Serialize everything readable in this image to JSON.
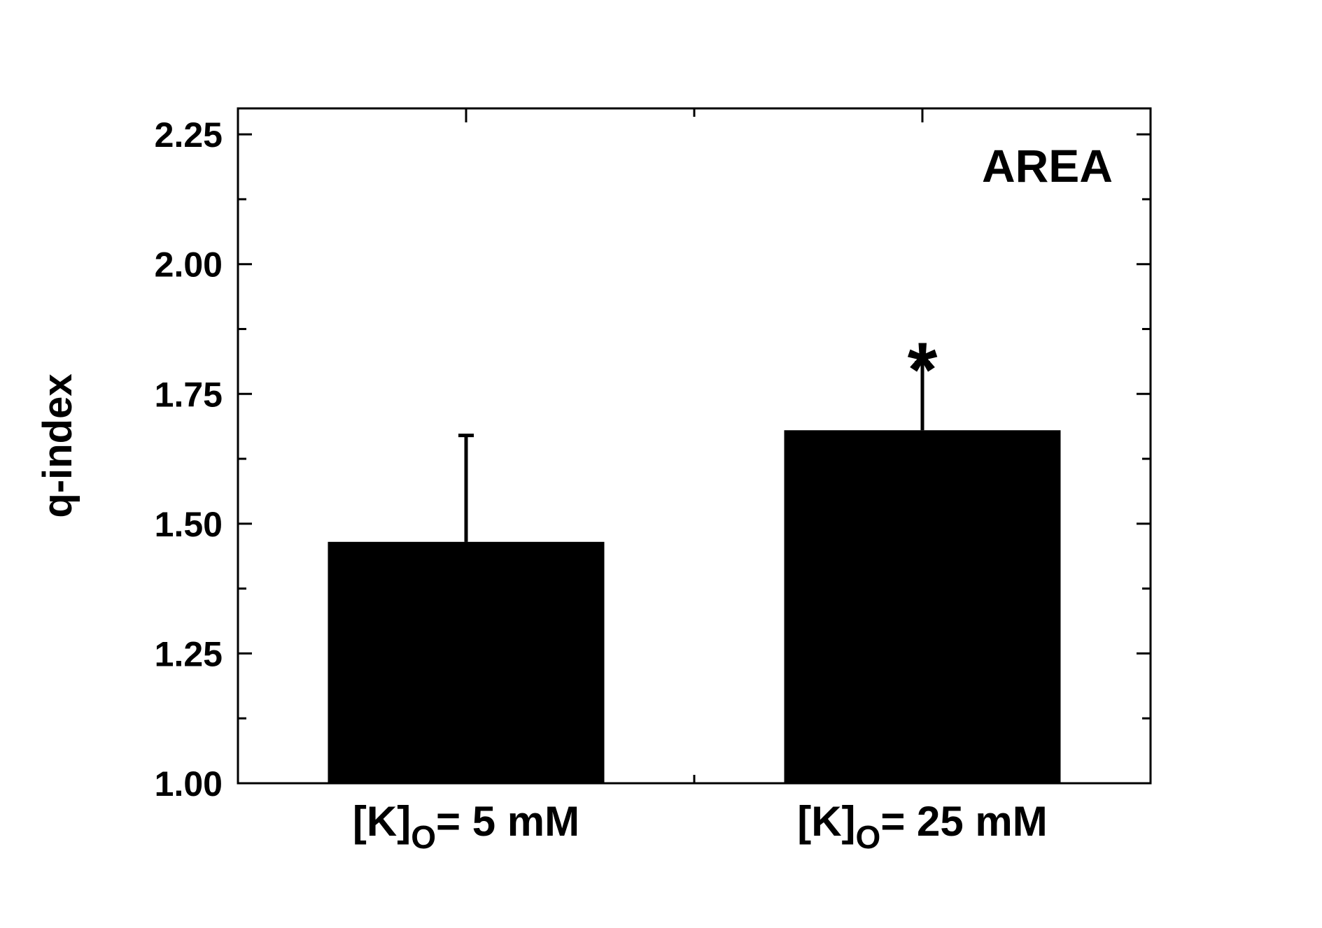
{
  "chart_data": {
    "type": "bar",
    "categories": [
      {
        "main": "[K]",
        "sub": "O",
        "rest": "= 5 mM"
      },
      {
        "main": "[K]",
        "sub": "O",
        "rest": "= 25 mM"
      }
    ],
    "values": [
      1.465,
      1.68
    ],
    "error_plus": [
      0.205,
      0.13
    ],
    "significance": [
      "",
      "*"
    ],
    "title": "",
    "annotation": "AREA",
    "xlabel": "",
    "ylabel": "q-index",
    "ylim": [
      1.0,
      2.3
    ],
    "yticks": [
      "1.00",
      "1.25",
      "1.50",
      "1.75",
      "2.00",
      "2.25"
    ],
    "ytick_values": [
      1.0,
      1.25,
      1.5,
      1.75,
      2.0,
      2.25
    ],
    "grid": false,
    "bar_color": "#000000"
  }
}
